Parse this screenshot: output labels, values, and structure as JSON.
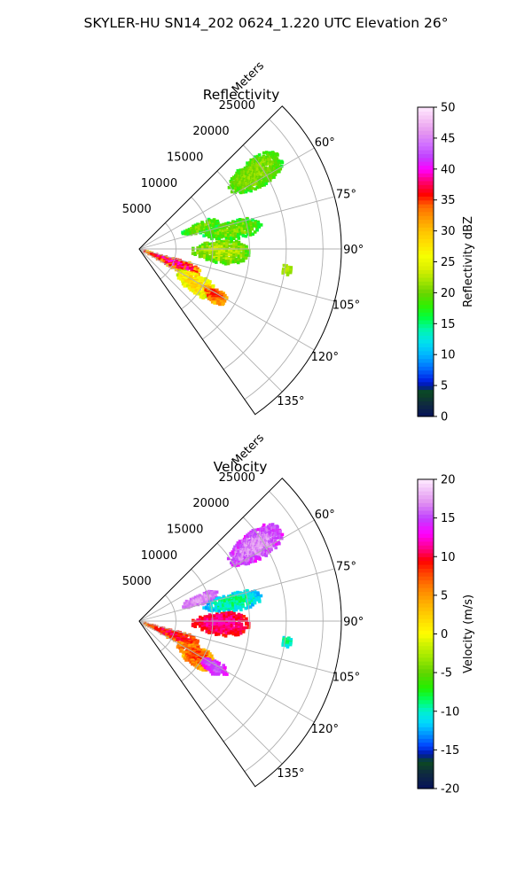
{
  "figure": {
    "title": "SKYLER-HU  SN14_202  0624_1.220 UTC Elevation 26°"
  },
  "chart_data": [
    {
      "type": "heatmap",
      "title": "Reflectivity",
      "radial_label": "Meters",
      "r_ticks": [
        5000,
        10000,
        15000,
        20000,
        25000
      ],
      "r_range": [
        0,
        27500
      ],
      "theta_range_deg": [
        45,
        145
      ],
      "theta_ticks_deg": [
        60,
        75,
        90,
        105,
        120,
        135
      ],
      "theta_tick_labels": [
        "60°",
        "75°",
        "90°",
        "105°",
        "120°",
        "135°"
      ],
      "colorbar": {
        "label": "Reflectivity dBZ",
        "ticks": [
          0,
          5,
          10,
          15,
          20,
          25,
          30,
          35,
          40,
          45,
          50
        ],
        "range": [
          0,
          50
        ]
      },
      "grid": true,
      "echoes": [
        {
          "az": [
            51,
            63
          ],
          "r": [
            14500,
            23000
          ],
          "value": [
            16,
            22
          ]
        },
        {
          "az": [
            66,
            76
          ],
          "r": [
            6000,
            11500
          ],
          "value": [
            14,
            22
          ]
        },
        {
          "az": [
            73,
            84
          ],
          "r": [
            9000,
            17000
          ],
          "value": [
            14,
            22
          ]
        },
        {
          "az": [
            84,
            100
          ],
          "r": [
            7000,
            15000
          ],
          "value": [
            16,
            24
          ]
        },
        {
          "az": [
            96,
            100
          ],
          "r": [
            19500,
            21000
          ],
          "value": [
            20,
            23
          ]
        },
        {
          "az": [
            104,
            120
          ],
          "r": [
            500,
            9000
          ],
          "value": [
            26,
            40
          ]
        },
        {
          "az": [
            113,
            130
          ],
          "r": [
            6000,
            12000
          ],
          "value": [
            20,
            30
          ]
        },
        {
          "az": [
            117,
            126
          ],
          "r": [
            10000,
            14000
          ],
          "value": [
            28,
            36
          ]
        }
      ]
    },
    {
      "type": "heatmap",
      "title": "Velocity",
      "radial_label": "Meters",
      "r_ticks": [
        5000,
        10000,
        15000,
        20000,
        25000
      ],
      "r_range": [
        0,
        27500
      ],
      "theta_range_deg": [
        45,
        145
      ],
      "theta_ticks_deg": [
        60,
        75,
        90,
        105,
        120,
        135
      ],
      "theta_tick_labels": [
        "60°",
        "75°",
        "90°",
        "105°",
        "120°",
        "135°"
      ],
      "colorbar": {
        "label": "Velocity (m/s)",
        "ticks": [
          -20,
          -15,
          -10,
          -5,
          0,
          5,
          10,
          15,
          20
        ],
        "range": [
          -20,
          20
        ]
      },
      "grid": true,
      "echoes": [
        {
          "az": [
            51,
            63
          ],
          "r": [
            14500,
            23000
          ],
          "value": [
            12,
            18
          ]
        },
        {
          "az": [
            66,
            76
          ],
          "r": [
            6000,
            11500
          ],
          "value": [
            14,
            18
          ]
        },
        {
          "az": [
            73,
            84
          ],
          "r": [
            9000,
            17000
          ],
          "value": [
            -14,
            -8
          ]
        },
        {
          "az": [
            84,
            100
          ],
          "r": [
            7000,
            15000
          ],
          "value": [
            8,
            12
          ]
        },
        {
          "az": [
            96,
            100
          ],
          "r": [
            19500,
            21000
          ],
          "value": [
            -12,
            -8
          ]
        },
        {
          "az": [
            104,
            120
          ],
          "r": [
            500,
            9000
          ],
          "value": [
            4,
            11
          ]
        },
        {
          "az": [
            113,
            130
          ],
          "r": [
            6000,
            12000
          ],
          "value": [
            1,
            9
          ]
        },
        {
          "az": [
            117,
            126
          ],
          "r": [
            10000,
            14000
          ],
          "value": [
            12,
            16
          ]
        }
      ]
    }
  ]
}
